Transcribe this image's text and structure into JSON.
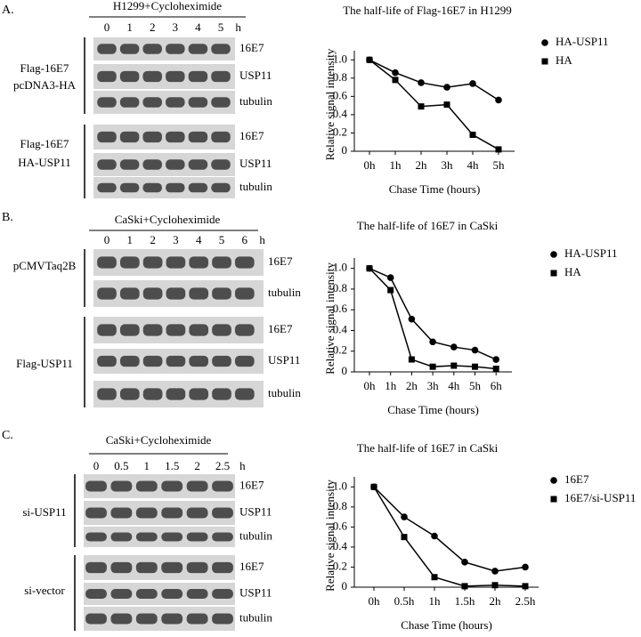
{
  "panels": [
    {
      "letter": "A.",
      "header": "H1299+Cycloheximide",
      "lanes": [
        "0",
        "1",
        "2",
        "3",
        "4",
        "5"
      ],
      "unit": "h",
      "groups": [
        {
          "labels": [
            "Flag-16E7",
            "pcDNA3-HA"
          ],
          "rows": [
            "16E7",
            "USP11",
            "tubulin"
          ]
        },
        {
          "labels": [
            "Flag-16E7",
            "HA-USP11"
          ],
          "rows": [
            "16E7",
            "USP11",
            "tubulin"
          ]
        }
      ]
    },
    {
      "letter": "B.",
      "header": "CaSki+Cycloheximide",
      "lanes": [
        "0",
        "1",
        "2",
        "3",
        "4",
        "5",
        "6"
      ],
      "unit": "h",
      "groups": [
        {
          "labels": [
            "pCMVTaq2B"
          ],
          "rows": [
            "16E7",
            "tubulin"
          ]
        },
        {
          "labels": [
            "Flag-USP11"
          ],
          "rows": [
            "16E7",
            "USP11",
            "tubulin"
          ]
        }
      ]
    },
    {
      "letter": "C.",
      "header": "CaSki+Cycloheximide",
      "lanes": [
        "0",
        "0.5",
        "1",
        "1.5",
        "2",
        "2.5"
      ],
      "unit": "h",
      "groups": [
        {
          "labels": [
            "si-USP11"
          ],
          "rows": [
            "16E7",
            "USP11",
            "tubulin"
          ]
        },
        {
          "labels": [
            "si-vector"
          ],
          "rows": [
            "16E7",
            "USP11",
            "tubulin"
          ]
        }
      ]
    }
  ],
  "chart_data": [
    {
      "type": "line",
      "title": "The half-life of Flag-16E7 in H1299",
      "x_label": "Chase Time (hours)",
      "y_label": "Relative signal intensity",
      "categories": [
        "0h",
        "1h",
        "2h",
        "3h",
        "4h",
        "5h"
      ],
      "series": [
        {
          "name": "HA-USP11",
          "color": "#000000",
          "marker": "circle",
          "values": [
            1.0,
            0.86,
            0.75,
            0.7,
            0.74,
            0.56
          ]
        },
        {
          "name": "HA",
          "color": "#000000",
          "marker": "square",
          "values": [
            1.0,
            0.78,
            0.49,
            0.51,
            0.18,
            0.02
          ]
        }
      ],
      "ylim": [
        0,
        1.1
      ],
      "yticks": [
        0,
        0.2,
        0.4,
        0.6,
        0.8,
        {
          "value": 1,
          "label": "1.0"
        }
      ],
      "legend": "upper right"
    },
    {
      "type": "line",
      "title": "The half-life of 16E7 in CaSki",
      "x_label": "Chase Time (hours)",
      "y_label": "Relative signal intensity",
      "categories": [
        "0h",
        "1h",
        "2h",
        "3h",
        "4h",
        "5h",
        "6h"
      ],
      "series": [
        {
          "name": "HA-USP11",
          "color": "#000000",
          "marker": "circle",
          "values": [
            1.0,
            0.91,
            0.51,
            0.29,
            0.24,
            0.21,
            0.12
          ]
        },
        {
          "name": "HA",
          "color": "#000000",
          "marker": "square",
          "values": [
            1.0,
            0.79,
            0.12,
            0.05,
            0.06,
            0.05,
            0.03
          ]
        }
      ],
      "ylim": [
        0,
        1.1
      ],
      "yticks": [
        0,
        0.2,
        0.4,
        0.6,
        0.8,
        {
          "value": 1,
          "label": "1.0"
        }
      ],
      "legend": "upper right"
    },
    {
      "type": "line",
      "title": "The half-life of 16E7 in CaSki",
      "x_label": "Chase Time (hours)",
      "y_label": "Relative signal intensity",
      "categories": [
        "0h",
        "0.5h",
        "1h",
        "1.5h",
        "2h",
        "2.5h"
      ],
      "series": [
        {
          "name": "16E7",
          "color": "#000000",
          "marker": "circle",
          "values": [
            1.0,
            0.7,
            0.51,
            0.25,
            0.16,
            0.2
          ]
        },
        {
          "name": "16E7/si-USP11",
          "color": "#000000",
          "marker": "square",
          "values": [
            1.0,
            0.5,
            0.1,
            0.01,
            0.02,
            0.01
          ]
        }
      ],
      "ylim": [
        0,
        1.1
      ],
      "yticks": [
        0,
        0.2,
        0.4,
        0.6,
        0.8,
        {
          "value": 1,
          "label": "1.0"
        }
      ],
      "legend": "upper right"
    }
  ]
}
